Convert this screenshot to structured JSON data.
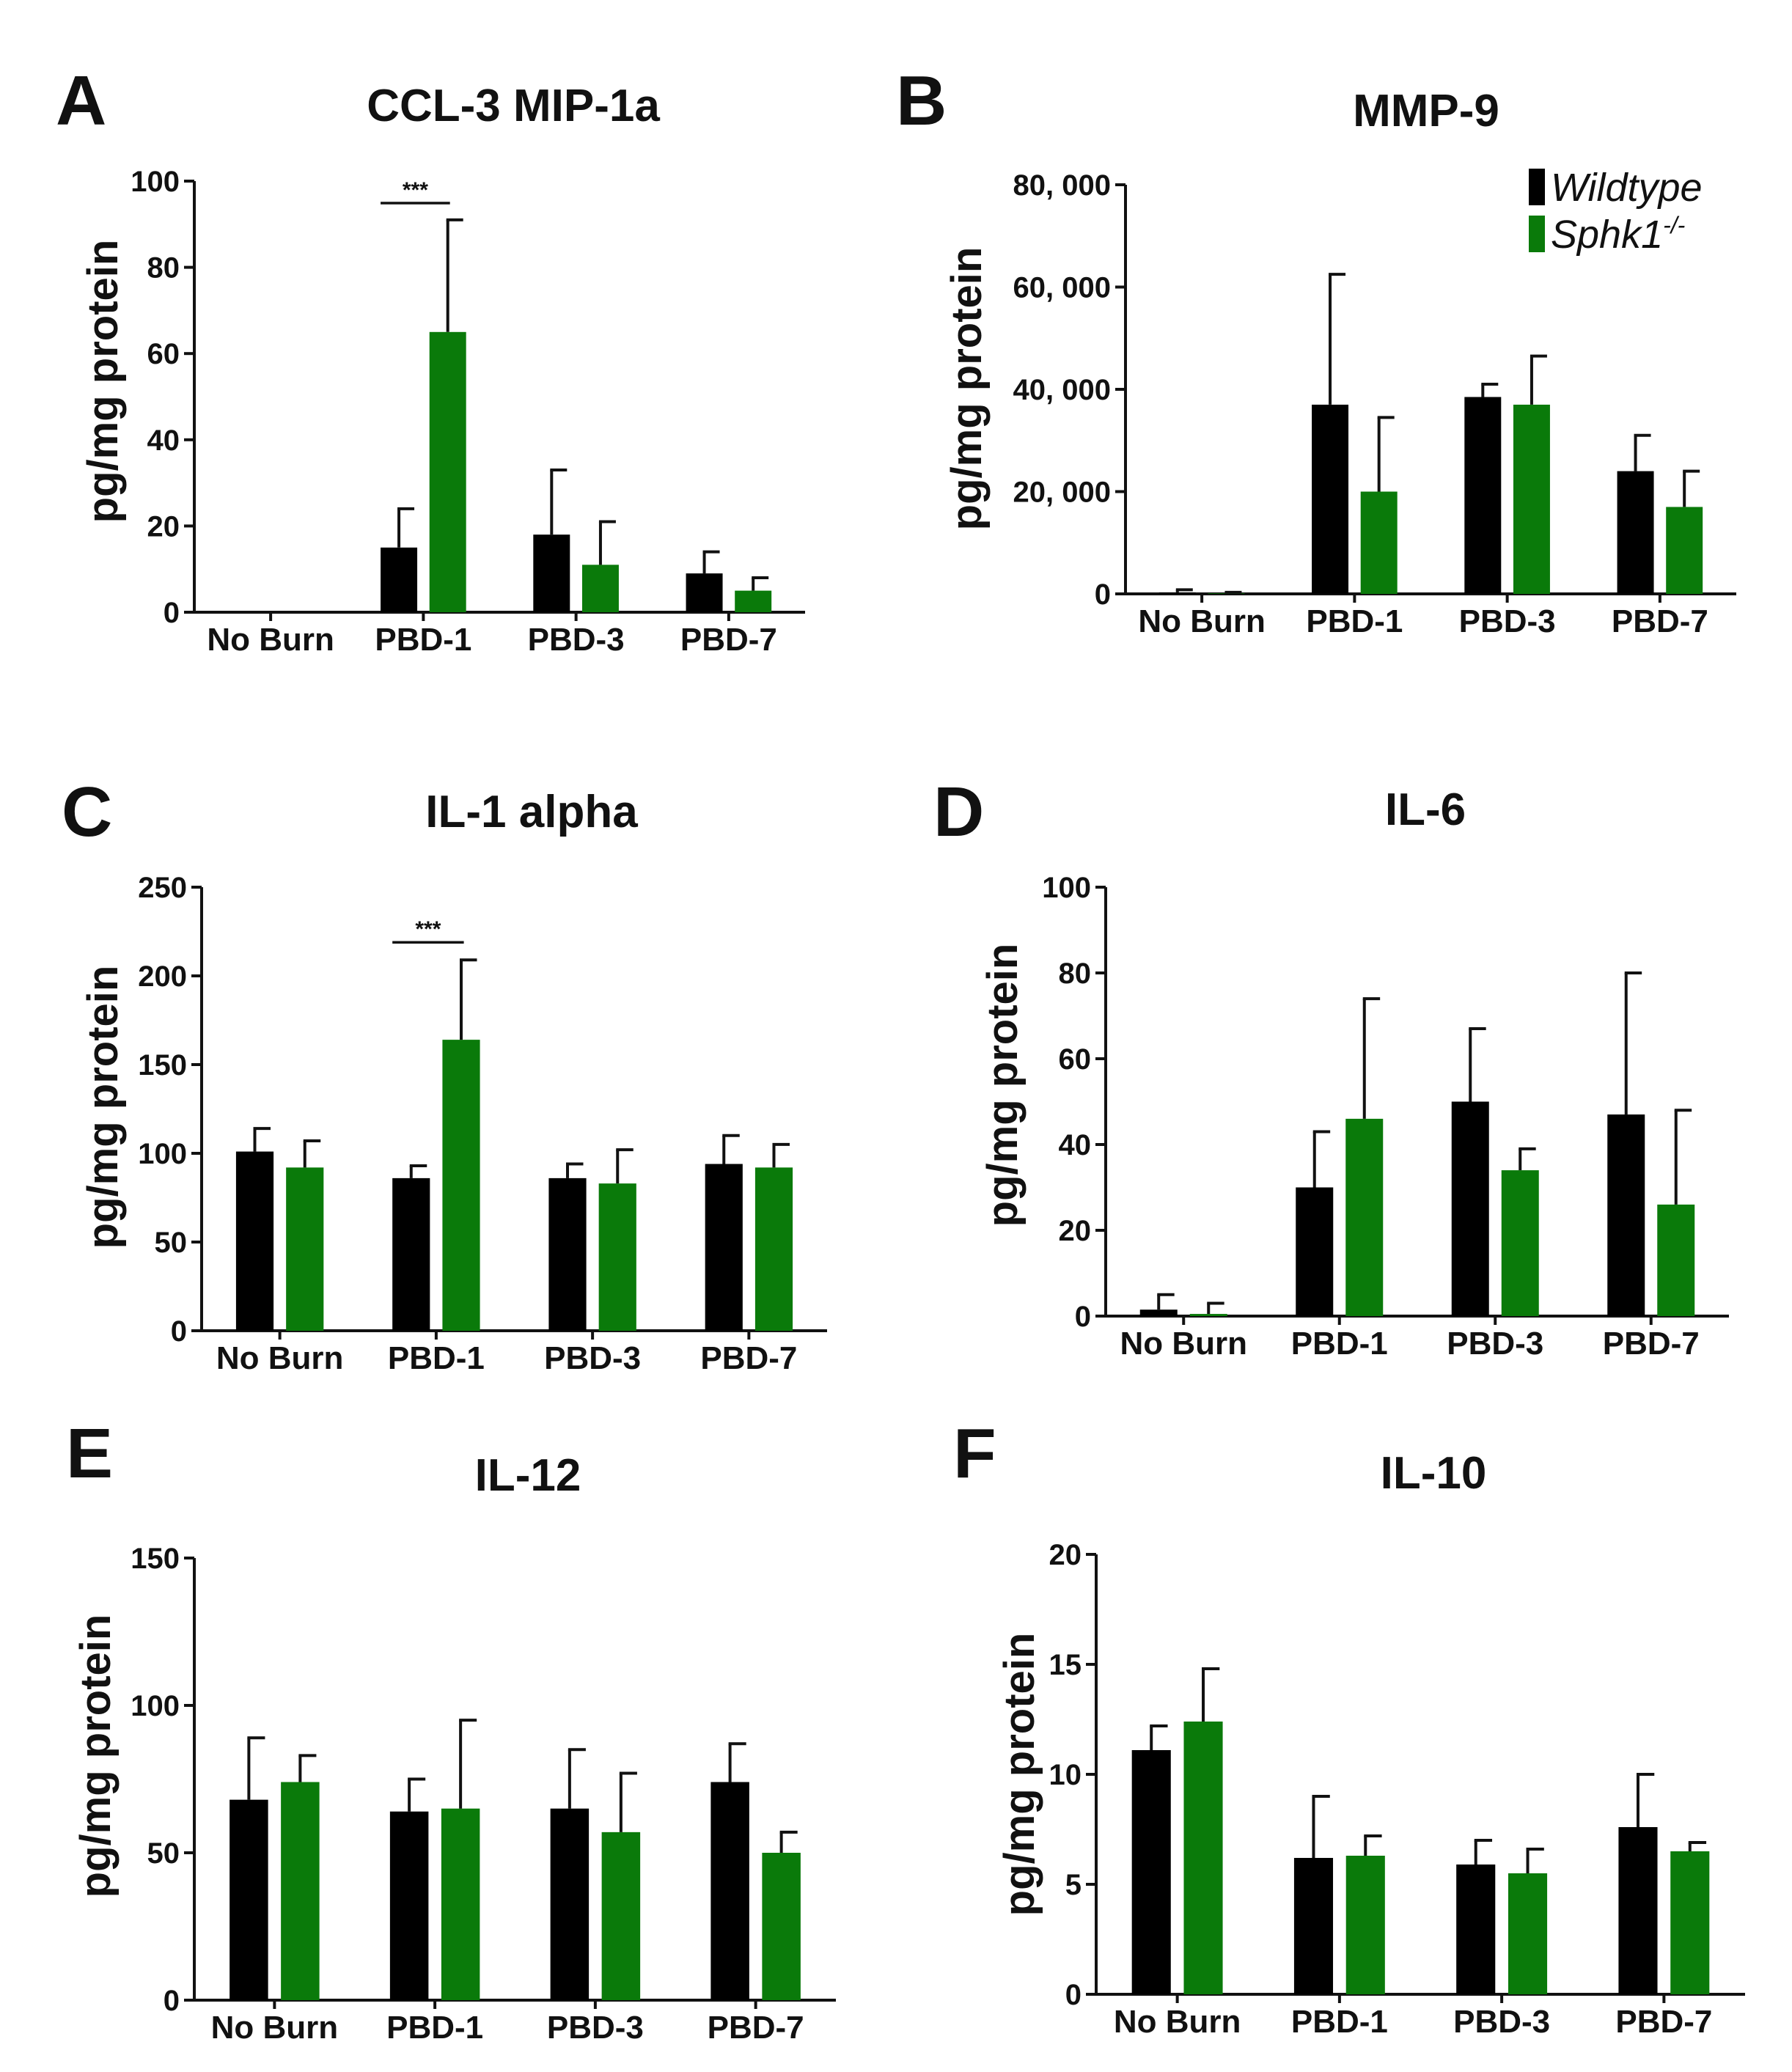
{
  "series_colors": {
    "Wildtype": "#000000",
    "Sphk1-/-": "#0a7a0a"
  },
  "legend": [
    {
      "name": "Wildtype",
      "label": "Wildtype",
      "sup": ""
    },
    {
      "name": "Sphk1-/-",
      "label": "Sphk1",
      "sup": "-/-"
    }
  ],
  "chart_data": [
    {
      "panel": "A",
      "type": "bar",
      "title": "CCL-3  MIP-1a",
      "xlabel": "",
      "ylabel": "pg/mg protein",
      "categories": [
        "No Burn",
        "PBD-1",
        "PBD-3",
        "PBD-7"
      ],
      "ylim": [
        0,
        100
      ],
      "yticks": [
        0,
        20,
        40,
        60,
        80,
        100
      ],
      "ytick_labels": [
        "0",
        "20",
        "40",
        "60",
        "80",
        "100"
      ],
      "series": [
        {
          "name": "Wildtype",
          "values": [
            0,
            15,
            18,
            9
          ],
          "errors": [
            0,
            9,
            15,
            5
          ]
        },
        {
          "name": "Sphk1-/-",
          "values": [
            0,
            65,
            11,
            5
          ],
          "errors": [
            0,
            26,
            10,
            3
          ]
        }
      ],
      "significance": [
        {
          "category": "PBD-1",
          "label": "***"
        }
      ]
    },
    {
      "panel": "B",
      "type": "bar",
      "title": "MMP-9",
      "xlabel": "",
      "ylabel": "pg/mg protein",
      "categories": [
        "No Burn",
        "PBD-1",
        "PBD-3",
        "PBD-7"
      ],
      "ylim": [
        0,
        80000
      ],
      "yticks": [
        0,
        20000,
        40000,
        60000,
        80000
      ],
      "ytick_labels": [
        "0",
        "20, 000",
        "40, 000",
        "60, 000",
        "80, 000"
      ],
      "series": [
        {
          "name": "Wildtype",
          "values": [
            300,
            37000,
            38500,
            24000
          ],
          "errors": [
            500,
            25500,
            2500,
            7000
          ]
        },
        {
          "name": "Sphk1-/-",
          "values": [
            100,
            20000,
            37000,
            17000
          ],
          "errors": [
            200,
            14500,
            9500,
            7000
          ]
        }
      ],
      "legend": "top-right"
    },
    {
      "panel": "C",
      "type": "bar",
      "title": "IL-1 alpha",
      "xlabel": "",
      "ylabel": "pg/mg protein",
      "categories": [
        "No Burn",
        "PBD-1",
        "PBD-3",
        "PBD-7"
      ],
      "ylim": [
        0,
        250
      ],
      "yticks": [
        0,
        50,
        100,
        150,
        200,
        250
      ],
      "ytick_labels": [
        "0",
        "50",
        "100",
        "150",
        "200",
        "250"
      ],
      "series": [
        {
          "name": "Wildtype",
          "values": [
            101,
            86,
            86,
            94
          ],
          "errors": [
            13,
            7,
            8,
            16
          ]
        },
        {
          "name": "Sphk1-/-",
          "values": [
            92,
            164,
            83,
            92
          ],
          "errors": [
            15,
            45,
            19,
            13
          ]
        }
      ],
      "significance": [
        {
          "category": "PBD-1",
          "label": "***"
        }
      ]
    },
    {
      "panel": "D",
      "type": "bar",
      "title": "IL-6",
      "xlabel": "",
      "ylabel": "pg/mg protein",
      "categories": [
        "No Burn",
        "PBD-1",
        "PBD-3",
        "PBD-7"
      ],
      "ylim": [
        0,
        100
      ],
      "yticks": [
        0,
        20,
        40,
        60,
        80,
        100
      ],
      "ytick_labels": [
        "0",
        "20",
        "40",
        "60",
        "80",
        "100"
      ],
      "series": [
        {
          "name": "Wildtype",
          "values": [
            1.5,
            30,
            50,
            47
          ],
          "errors": [
            3.5,
            13,
            17,
            33
          ]
        },
        {
          "name": "Sphk1-/-",
          "values": [
            0.5,
            46,
            34,
            26
          ],
          "errors": [
            2.5,
            28,
            5,
            22
          ]
        }
      ]
    },
    {
      "panel": "E",
      "type": "bar",
      "title": "IL-12",
      "xlabel": "",
      "ylabel": "pg/mg protein",
      "categories": [
        "No Burn",
        "PBD-1",
        "PBD-3",
        "PBD-7"
      ],
      "ylim": [
        0,
        150
      ],
      "yticks": [
        0,
        50,
        100,
        150
      ],
      "ytick_labels": [
        "0",
        "50",
        "100",
        "150"
      ],
      "series": [
        {
          "name": "Wildtype",
          "values": [
            68,
            64,
            65,
            74
          ],
          "errors": [
            21,
            11,
            20,
            13
          ]
        },
        {
          "name": "Sphk1-/-",
          "values": [
            74,
            65,
            57,
            50
          ],
          "errors": [
            9,
            30,
            20,
            7
          ]
        }
      ]
    },
    {
      "panel": "F",
      "type": "bar",
      "title": "IL-10",
      "xlabel": "",
      "ylabel": "pg/mg protein",
      "categories": [
        "No Burn",
        "PBD-1",
        "PBD-3",
        "PBD-7"
      ],
      "ylim": [
        0,
        20
      ],
      "yticks": [
        0,
        5,
        10,
        15,
        20
      ],
      "ytick_labels": [
        "0",
        "5",
        "10",
        "15",
        "20"
      ],
      "series": [
        {
          "name": "Wildtype",
          "values": [
            11.1,
            6.2,
            5.9,
            7.6
          ],
          "errors": [
            1.1,
            2.8,
            1.1,
            2.4
          ]
        },
        {
          "name": "Sphk1-/-",
          "values": [
            12.4,
            6.3,
            5.5,
            6.5
          ],
          "errors": [
            2.4,
            0.9,
            1.1,
            0.4
          ]
        }
      ]
    }
  ]
}
